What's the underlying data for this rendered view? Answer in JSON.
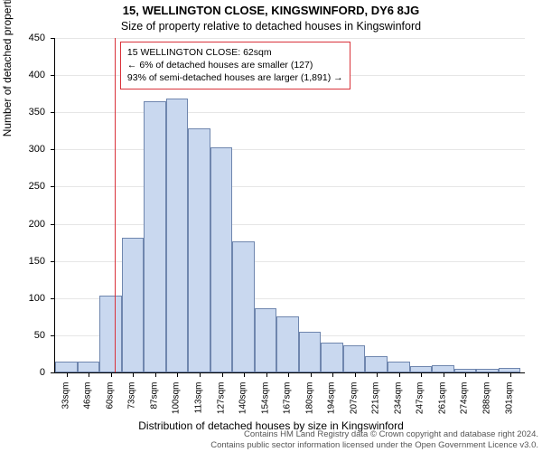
{
  "title_main": "15, WELLINGTON CLOSE, KINGSWINFORD, DY6 8JG",
  "title_sub": "Size of property relative to detached houses in Kingswinford",
  "ylabel": "Number of detached properties",
  "xlabel": "Distribution of detached houses by size in Kingswinford",
  "footer_line1": "Contains HM Land Registry data © Crown copyright and database right 2024.",
  "footer_line2": "Contains public sector information licensed under the Open Government Licence v3.0.",
  "chart": {
    "type": "histogram",
    "background_color": "#ffffff",
    "grid_color": "#e6e6e6",
    "axis_color": "#000000",
    "bar_fill": "#c9d8ef",
    "bar_border": "#6f86ae",
    "marker_color": "#d9323a",
    "callout_border": "#d9323a",
    "ymin": 0,
    "ymax": 450,
    "ytick_step": 50,
    "yticks": [
      0,
      50,
      100,
      150,
      200,
      250,
      300,
      350,
      400,
      450
    ],
    "xmin": 26,
    "xmax": 310,
    "xtick_start": 33,
    "xtick_step": 13.4,
    "xtick_count": 21,
    "xtick_unit": "sqm",
    "marker_x": 62,
    "bar_bin_start": 26,
    "bar_bin_width": 13.4,
    "bars": [
      15,
      15,
      103,
      181,
      365,
      368,
      328,
      303,
      176,
      86,
      76,
      55,
      40,
      36,
      22,
      15,
      8,
      10,
      5,
      5,
      6
    ],
    "label_fontsize": 12,
    "tick_fontsize": 11,
    "xtick_fontsize": 10,
    "callout_fontsize": 10.5
  },
  "callout": {
    "line1": "15 WELLINGTON CLOSE: 62sqm",
    "line2": "← 6% of detached houses are smaller (127)",
    "line3": "93% of semi-detached houses are larger (1,891) →"
  }
}
